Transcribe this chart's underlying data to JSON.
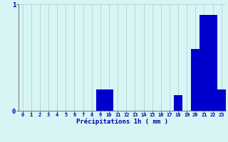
{
  "title": "",
  "xlabel": "Précipitations 1h ( mm )",
  "ylabel": "",
  "hours": [
    0,
    1,
    2,
    3,
    4,
    5,
    6,
    7,
    8,
    9,
    10,
    11,
    12,
    13,
    14,
    15,
    16,
    17,
    18,
    19,
    20,
    21,
    22,
    23
  ],
  "values": [
    0,
    0,
    0,
    0,
    0,
    0,
    0,
    0,
    0,
    0.2,
    0.2,
    0,
    0,
    0,
    0,
    0,
    0,
    0,
    0.15,
    0,
    0.58,
    0.9,
    0.9,
    0.2
  ],
  "bar_color": "#0000cc",
  "background_color": "#d8f5f5",
  "grid_color": "#b8d0d0",
  "axis_color": "#808080",
  "text_color": "#0000aa",
  "ylim": [
    0,
    1.0
  ],
  "yticks": [
    0,
    1
  ],
  "figsize": [
    3.2,
    2.0
  ],
  "dpi": 100
}
